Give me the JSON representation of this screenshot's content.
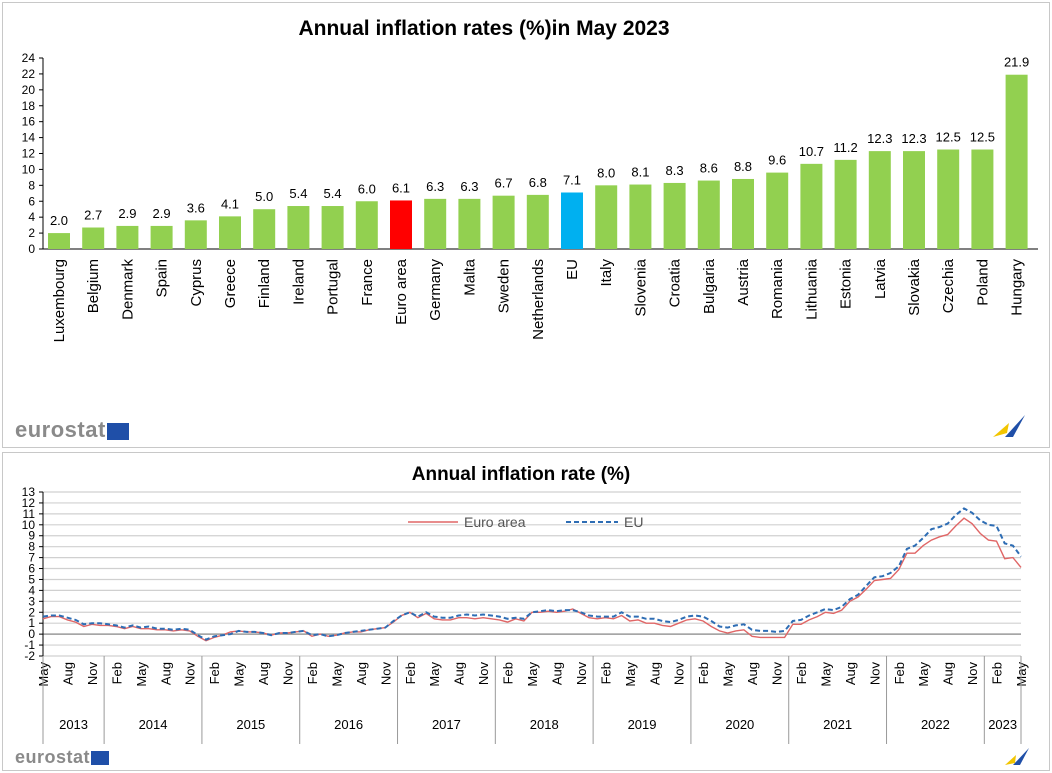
{
  "chart_data": [
    {
      "type": "bar",
      "title": "Annual inflation rates (%)in May 2023",
      "categories": [
        "Luxembourg",
        "Belgium",
        "Denmark",
        "Spain",
        "Cyprus",
        "Greece",
        "Finland",
        "Ireland",
        "Portugal",
        "France",
        "Euro area",
        "Germany",
        "Malta",
        "Sweden",
        "Netherlands",
        "EU",
        "Italy",
        "Slovenia",
        "Croatia",
        "Bulgaria",
        "Austria",
        "Romania",
        "Lithuania",
        "Estonia",
        "Latvia",
        "Slovakia",
        "Czechia",
        "Poland",
        "Hungary"
      ],
      "values": [
        2.0,
        2.7,
        2.9,
        2.9,
        3.6,
        4.1,
        5.0,
        5.4,
        5.4,
        6.0,
        6.1,
        6.3,
        6.3,
        6.7,
        6.8,
        7.1,
        8.0,
        8.1,
        8.3,
        8.6,
        8.8,
        9.6,
        10.7,
        11.2,
        12.3,
        12.3,
        12.5,
        12.5,
        21.9
      ],
      "labels": [
        "2.0",
        "2.7",
        "2.9",
        "2.9",
        "3.6",
        "4.1",
        "5.0",
        "5.4",
        "5.4",
        "6.0",
        "6.1",
        "6.3",
        "6.3",
        "6.7",
        "6.8",
        "7.1",
        "8.0",
        "8.1",
        "8.3",
        "8.6",
        "8.8",
        "9.6",
        "10.7",
        "11.2",
        "12.3",
        "12.3",
        "12.5",
        "12.5",
        "21.9"
      ],
      "colors": {
        "default": "#92D050",
        "Euro area": "#FF0000",
        "EU": "#00B0F0"
      },
      "ylim": [
        0,
        24
      ],
      "yticks": [
        0,
        2,
        4,
        6,
        8,
        10,
        12,
        14,
        16,
        18,
        20,
        22,
        24
      ],
      "grid": false
    },
    {
      "type": "line",
      "title": "Annual inflation rate (%)",
      "x_start": "May 2013",
      "x_end": "May 2023",
      "frequency": "monthly",
      "ylim": [
        -2,
        13
      ],
      "yticks": [
        -2,
        -1,
        0,
        1,
        2,
        3,
        4,
        5,
        6,
        7,
        8,
        9,
        10,
        11,
        12,
        13
      ],
      "grid": true,
      "legend": "top-center",
      "month_ticks": [
        "May",
        "Aug",
        "Nov",
        "Feb",
        "May",
        "Aug",
        "Nov",
        "Feb",
        "May",
        "Aug",
        "Nov",
        "Feb",
        "May",
        "Aug",
        "Nov",
        "Feb",
        "May",
        "Aug",
        "Nov",
        "Feb",
        "May",
        "Aug",
        "Nov",
        "Feb",
        "May",
        "Aug",
        "Nov",
        "Feb",
        "May",
        "Aug",
        "Nov",
        "Feb",
        "May",
        "Aug",
        "Nov",
        "Feb",
        "May",
        "Aug",
        "Nov",
        "Feb",
        "May"
      ],
      "years": [
        "2013",
        "2014",
        "2015",
        "2016",
        "2017",
        "2018",
        "2019",
        "2020",
        "2021",
        "2022",
        "2023"
      ],
      "series": [
        {
          "name": "Euro area",
          "color": "#E06666",
          "style": "solid",
          "values": [
            1.4,
            1.6,
            1.6,
            1.3,
            1.1,
            0.7,
            0.9,
            0.8,
            0.8,
            0.7,
            0.5,
            0.7,
            0.5,
            0.5,
            0.4,
            0.4,
            0.3,
            0.4,
            0.3,
            -0.2,
            -0.6,
            -0.3,
            -0.1,
            0.2,
            0.3,
            0.2,
            0.2,
            0.1,
            -0.1,
            0.1,
            0.1,
            0.2,
            0.3,
            -0.2,
            0.0,
            -0.2,
            -0.1,
            0.1,
            0.2,
            0.2,
            0.4,
            0.5,
            0.6,
            1.1,
            1.7,
            2.0,
            1.5,
            1.9,
            1.4,
            1.3,
            1.3,
            1.5,
            1.5,
            1.4,
            1.5,
            1.4,
            1.3,
            1.1,
            1.4,
            1.2,
            2.0,
            2.0,
            2.1,
            2.0,
            2.1,
            2.3,
            1.9,
            1.5,
            1.4,
            1.5,
            1.4,
            1.7,
            1.2,
            1.3,
            1.0,
            1.0,
            0.8,
            0.7,
            1.0,
            1.3,
            1.4,
            1.2,
            0.7,
            0.3,
            0.1,
            0.3,
            0.4,
            -0.2,
            -0.3,
            -0.3,
            -0.3,
            -0.3,
            0.9,
            0.9,
            1.3,
            1.6,
            2.0,
            1.9,
            2.2,
            3.0,
            3.4,
            4.1,
            4.9,
            5.0,
            5.1,
            5.9,
            7.4,
            7.4,
            8.1,
            8.6,
            8.9,
            9.1,
            9.9,
            10.6,
            10.1,
            9.2,
            8.6,
            8.5,
            6.9,
            7.0,
            6.1
          ]
        },
        {
          "name": "EU",
          "color": "#2E6DB4",
          "style": "dashed",
          "values": [
            1.6,
            1.7,
            1.7,
            1.5,
            1.3,
            0.9,
            1.0,
            1.0,
            0.9,
            0.8,
            0.6,
            0.8,
            0.6,
            0.7,
            0.5,
            0.5,
            0.4,
            0.5,
            0.4,
            -0.1,
            -0.5,
            -0.2,
            -0.1,
            0.0,
            0.3,
            0.2,
            0.2,
            0.1,
            -0.1,
            0.1,
            0.1,
            0.2,
            0.3,
            -0.1,
            0.0,
            -0.2,
            -0.1,
            0.1,
            0.2,
            0.3,
            0.4,
            0.5,
            0.6,
            1.2,
            1.7,
            2.0,
            1.6,
            2.0,
            1.6,
            1.5,
            1.5,
            1.7,
            1.8,
            1.7,
            1.8,
            1.7,
            1.6,
            1.4,
            1.5,
            1.4,
            2.0,
            2.1,
            2.2,
            2.1,
            2.2,
            2.2,
            2.0,
            1.7,
            1.6,
            1.6,
            1.6,
            2.0,
            1.6,
            1.6,
            1.4,
            1.4,
            1.2,
            1.1,
            1.3,
            1.6,
            1.7,
            1.6,
            1.2,
            0.7,
            0.6,
            0.8,
            0.9,
            0.4,
            0.3,
            0.3,
            0.2,
            0.3,
            1.2,
            1.3,
            1.7,
            2.0,
            2.3,
            2.2,
            2.5,
            3.2,
            3.6,
            4.4,
            5.2,
            5.3,
            5.6,
            6.2,
            7.8,
            8.1,
            8.8,
            9.6,
            9.8,
            10.1,
            10.9,
            11.5,
            11.1,
            10.4,
            10.0,
            9.9,
            8.3,
            8.1,
            7.1
          ]
        }
      ]
    }
  ],
  "branding": {
    "logo_text": "eurostat"
  }
}
